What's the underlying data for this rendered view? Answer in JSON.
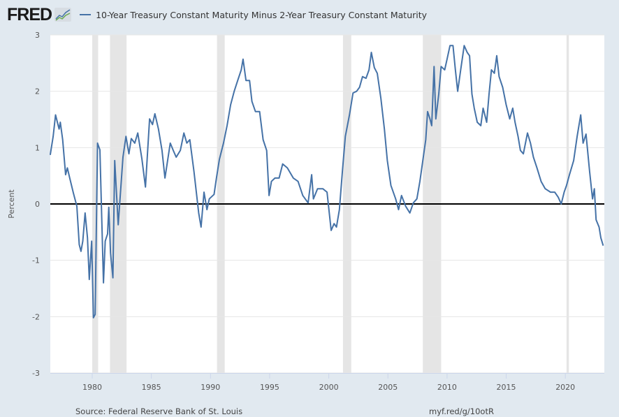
{
  "header": {
    "logo_text": "FRED",
    "logo_icon": "fred-chart-icon",
    "title": "10-Year Treasury Constant Maturity Minus 2-Year Treasury Constant Maturity"
  },
  "footer": {
    "source": "Source: Federal Reserve Bank of St. Louis",
    "link": "myf.red/g/10otR"
  },
  "colors": {
    "series": "#4572a7",
    "recession": "#e5e5e5",
    "background": "#e1e9f0",
    "plot_bg": "#ffffff",
    "zero_line": "#000000"
  },
  "chart_data": {
    "type": "line",
    "title": "10-Year Treasury Constant Maturity Minus 2-Year Treasury Constant Maturity",
    "xlabel": "",
    "ylabel": "Percent",
    "xlim": [
      1976.45,
      2023.2
    ],
    "ylim": [
      -3,
      3
    ],
    "yticks": [
      3,
      2,
      1,
      0,
      -1,
      -2,
      -3
    ],
    "xticks": [
      1980,
      1985,
      1990,
      1995,
      2000,
      2005,
      2010,
      2015,
      2020
    ],
    "grid": true,
    "legend": "top-left",
    "reference_line": 0,
    "recessions": [
      [
        1980.0,
        1980.5
      ],
      [
        1981.5,
        1982.9
      ],
      [
        1990.55,
        1991.2
      ],
      [
        2001.2,
        2001.9
      ],
      [
        2007.95,
        2009.5
      ],
      [
        2020.1,
        2020.3
      ]
    ],
    "series": [
      {
        "name": "10-Year Treasury Constant Maturity Minus 2-Year Treasury Constant Maturity",
        "points": [
          [
            1976.45,
            0.87
          ],
          [
            1976.7,
            1.2
          ],
          [
            1976.9,
            1.58
          ],
          [
            1977.2,
            1.33
          ],
          [
            1977.3,
            1.45
          ],
          [
            1977.5,
            1.14
          ],
          [
            1977.75,
            0.52
          ],
          [
            1977.9,
            0.64
          ],
          [
            1978.1,
            0.46
          ],
          [
            1978.4,
            0.2
          ],
          [
            1978.7,
            -0.04
          ],
          [
            1978.9,
            -0.72
          ],
          [
            1979.05,
            -0.84
          ],
          [
            1979.2,
            -0.66
          ],
          [
            1979.4,
            -0.16
          ],
          [
            1979.6,
            -0.6
          ],
          [
            1979.75,
            -1.34
          ],
          [
            1979.95,
            -0.66
          ],
          [
            1980.1,
            -2.02
          ],
          [
            1980.25,
            -1.96
          ],
          [
            1980.45,
            1.08
          ],
          [
            1980.65,
            0.96
          ],
          [
            1980.95,
            -1.4
          ],
          [
            1981.1,
            -0.66
          ],
          [
            1981.3,
            -0.53
          ],
          [
            1981.4,
            -0.06
          ],
          [
            1981.55,
            -0.87
          ],
          [
            1981.75,
            -1.31
          ],
          [
            1981.9,
            0.77
          ],
          [
            1982.2,
            -0.37
          ],
          [
            1982.35,
            0.09
          ],
          [
            1982.6,
            0.83
          ],
          [
            1982.85,
            1.2
          ],
          [
            1983.1,
            0.89
          ],
          [
            1983.3,
            1.16
          ],
          [
            1983.6,
            1.08
          ],
          [
            1983.85,
            1.26
          ],
          [
            1984.2,
            0.8
          ],
          [
            1984.5,
            0.3
          ],
          [
            1984.85,
            1.51
          ],
          [
            1985.1,
            1.41
          ],
          [
            1985.3,
            1.6
          ],
          [
            1985.6,
            1.33
          ],
          [
            1985.9,
            0.95
          ],
          [
            1986.15,
            0.46
          ],
          [
            1986.6,
            1.08
          ],
          [
            1986.85,
            0.95
          ],
          [
            1987.1,
            0.83
          ],
          [
            1987.45,
            0.95
          ],
          [
            1987.75,
            1.26
          ],
          [
            1988.0,
            1.08
          ],
          [
            1988.25,
            1.14
          ],
          [
            1988.6,
            0.58
          ],
          [
            1989.0,
            -0.16
          ],
          [
            1989.2,
            -0.41
          ],
          [
            1989.45,
            0.21
          ],
          [
            1989.7,
            -0.1
          ],
          [
            1989.9,
            0.09
          ],
          [
            1990.3,
            0.17
          ],
          [
            1990.5,
            0.46
          ],
          [
            1990.75,
            0.79
          ],
          [
            1991.1,
            1.08
          ],
          [
            1991.4,
            1.39
          ],
          [
            1991.7,
            1.76
          ],
          [
            1992.0,
            2.0
          ],
          [
            1992.3,
            2.19
          ],
          [
            1992.6,
            2.38
          ],
          [
            1992.75,
            2.57
          ],
          [
            1993.0,
            2.19
          ],
          [
            1993.3,
            2.19
          ],
          [
            1993.5,
            1.82
          ],
          [
            1993.8,
            1.64
          ],
          [
            1994.15,
            1.64
          ],
          [
            1994.45,
            1.14
          ],
          [
            1994.75,
            0.95
          ],
          [
            1994.95,
            0.15
          ],
          [
            1995.15,
            0.4
          ],
          [
            1995.45,
            0.46
          ],
          [
            1995.8,
            0.46
          ],
          [
            1996.1,
            0.71
          ],
          [
            1996.5,
            0.64
          ],
          [
            1997.0,
            0.46
          ],
          [
            1997.4,
            0.4
          ],
          [
            1997.8,
            0.15
          ],
          [
            1998.25,
            0.02
          ],
          [
            1998.55,
            0.52
          ],
          [
            1998.7,
            0.09
          ],
          [
            1999.05,
            0.27
          ],
          [
            1999.5,
            0.27
          ],
          [
            1999.85,
            0.21
          ],
          [
            2000.2,
            -0.47
          ],
          [
            2000.45,
            -0.35
          ],
          [
            2000.65,
            -0.41
          ],
          [
            2000.9,
            -0.1
          ],
          [
            2001.15,
            0.58
          ],
          [
            2001.4,
            1.2
          ],
          [
            2001.75,
            1.58
          ],
          [
            2002.05,
            1.97
          ],
          [
            2002.35,
            2.0
          ],
          [
            2002.6,
            2.07
          ],
          [
            2002.85,
            2.26
          ],
          [
            2003.15,
            2.23
          ],
          [
            2003.4,
            2.38
          ],
          [
            2003.6,
            2.69
          ],
          [
            2003.85,
            2.42
          ],
          [
            2004.1,
            2.32
          ],
          [
            2004.4,
            1.88
          ],
          [
            2004.7,
            1.33
          ],
          [
            2004.95,
            0.77
          ],
          [
            2005.25,
            0.33
          ],
          [
            2005.65,
            0.09
          ],
          [
            2005.9,
            -0.1
          ],
          [
            2006.15,
            0.15
          ],
          [
            2006.5,
            -0.04
          ],
          [
            2006.85,
            -0.16
          ],
          [
            2007.15,
            0.02
          ],
          [
            2007.45,
            0.09
          ],
          [
            2007.7,
            0.4
          ],
          [
            2007.95,
            0.77
          ],
          [
            2008.2,
            1.14
          ],
          [
            2008.35,
            1.64
          ],
          [
            2008.55,
            1.51
          ],
          [
            2008.7,
            1.39
          ],
          [
            2008.9,
            2.44
          ],
          [
            2009.05,
            1.51
          ],
          [
            2009.3,
            1.95
          ],
          [
            2009.5,
            2.44
          ],
          [
            2009.8,
            2.38
          ],
          [
            2010.0,
            2.57
          ],
          [
            2010.25,
            2.81
          ],
          [
            2010.5,
            2.81
          ],
          [
            2010.7,
            2.38
          ],
          [
            2010.9,
            2.0
          ],
          [
            2011.15,
            2.38
          ],
          [
            2011.45,
            2.81
          ],
          [
            2011.7,
            2.69
          ],
          [
            2011.9,
            2.63
          ],
          [
            2012.1,
            1.95
          ],
          [
            2012.3,
            1.7
          ],
          [
            2012.55,
            1.45
          ],
          [
            2012.85,
            1.39
          ],
          [
            2013.05,
            1.7
          ],
          [
            2013.35,
            1.45
          ],
          [
            2013.55,
            1.95
          ],
          [
            2013.75,
            2.38
          ],
          [
            2014.0,
            2.32
          ],
          [
            2014.2,
            2.63
          ],
          [
            2014.4,
            2.26
          ],
          [
            2014.7,
            2.07
          ],
          [
            2015.0,
            1.76
          ],
          [
            2015.3,
            1.51
          ],
          [
            2015.55,
            1.7
          ],
          [
            2015.75,
            1.45
          ],
          [
            2016.0,
            1.2
          ],
          [
            2016.2,
            0.95
          ],
          [
            2016.45,
            0.89
          ],
          [
            2016.8,
            1.26
          ],
          [
            2017.05,
            1.08
          ],
          [
            2017.3,
            0.83
          ],
          [
            2017.6,
            0.64
          ],
          [
            2017.95,
            0.4
          ],
          [
            2018.3,
            0.27
          ],
          [
            2018.75,
            0.21
          ],
          [
            2019.1,
            0.21
          ],
          [
            2019.4,
            0.12
          ],
          [
            2019.65,
            0.0
          ],
          [
            2019.9,
            0.21
          ],
          [
            2020.1,
            0.33
          ],
          [
            2020.35,
            0.52
          ],
          [
            2020.7,
            0.77
          ],
          [
            2021.0,
            1.2
          ],
          [
            2021.3,
            1.58
          ],
          [
            2021.5,
            1.08
          ],
          [
            2021.75,
            1.24
          ],
          [
            2022.05,
            0.58
          ],
          [
            2022.3,
            0.09
          ],
          [
            2022.45,
            0.27
          ],
          [
            2022.6,
            -0.28
          ],
          [
            2022.85,
            -0.41
          ],
          [
            2023.0,
            -0.6
          ],
          [
            2023.2,
            -0.74
          ]
        ]
      }
    ]
  }
}
